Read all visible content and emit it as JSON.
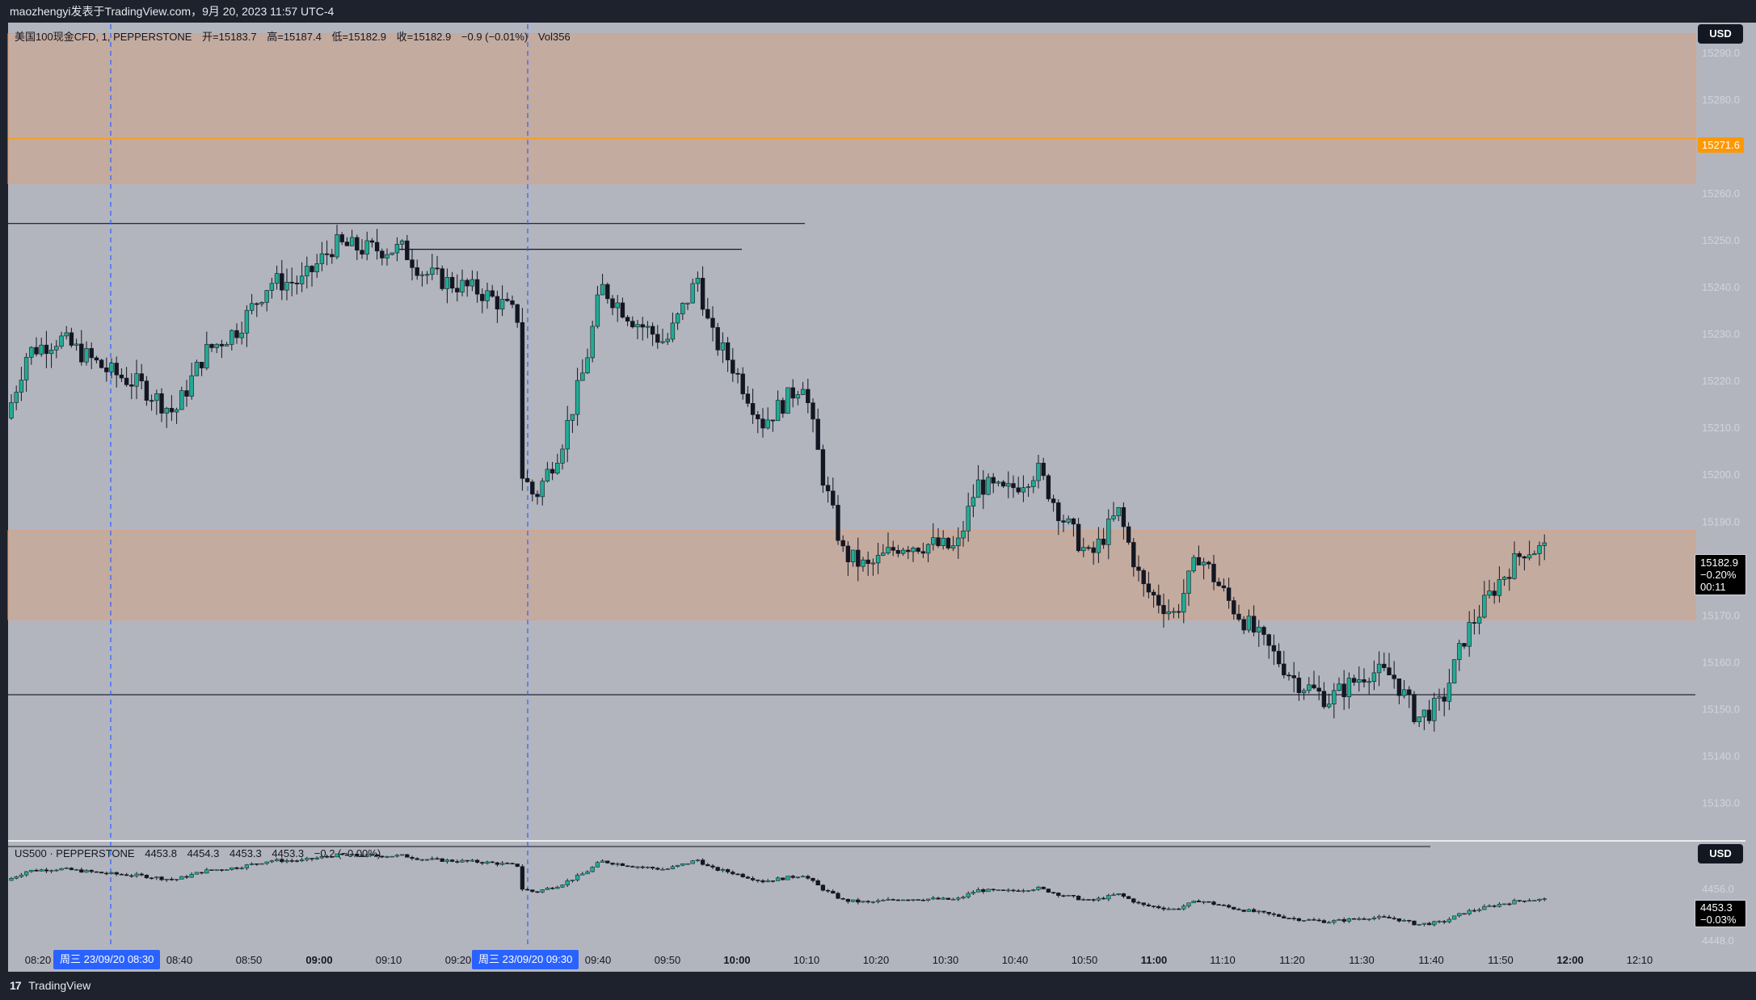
{
  "header": {
    "title": "maozhengyi发表于TradingView.com，9月 20, 2023 11:57 UTC-4"
  },
  "main_legend": {
    "symbol": "美国100现金CFD, 1, PEPPERSTONE",
    "open": "开=15183.7",
    "high": "高=15187.4",
    "low": "低=15182.9",
    "close": "收=15182.9",
    "change": "−0.9 (−0.01%)",
    "volume": "Vol356"
  },
  "sub_legend": {
    "symbol": "US500 · PEPPERSTONE",
    "open": "4453.8",
    "high": "4454.3",
    "low": "4453.3",
    "close": "4453.3",
    "change": "−0.2 (−0.00%)"
  },
  "price_axis": {
    "currency": "USD",
    "labels": [
      "15290.0",
      "15280.0",
      "15270.0",
      "15260.0",
      "15250.0",
      "15240.0",
      "15230.0",
      "15220.0",
      "15210.0",
      "15200.0",
      "15190.0",
      "15180.0",
      "15170.0",
      "15160.0",
      "15150.0",
      "15140.0",
      "15130.0"
    ],
    "orange_level": "15271.6",
    "last_price": "15182.9",
    "last_change": "−0.20%",
    "countdown": "00:11"
  },
  "sub_axis": {
    "currency": "USD",
    "labels": [
      "4456.0",
      "4448.0"
    ],
    "last_price": "4453.3",
    "last_change": "−0.03%"
  },
  "time_axis": {
    "labels": [
      "08:20",
      "08:40",
      "08:50",
      "09:00",
      "09:10",
      "09:20",
      "09:40",
      "09:50",
      "10:00",
      "10:10",
      "10:20",
      "10:30",
      "10:40",
      "10:50",
      "11:00",
      "11:10",
      "11:20",
      "11:30",
      "11:40",
      "11:50",
      "12:00",
      "12:10"
    ],
    "bold": [
      "09:00",
      "10:00",
      "11:00",
      "12:00"
    ],
    "session_tags": [
      "周三 23/09/20   08:30",
      "周三 23/09/20   09:30"
    ]
  },
  "footer": {
    "logo": "17",
    "brand": "TradingView"
  },
  "colors": {
    "background": "#b2b5be",
    "zone_fill": "#d9a07a",
    "up_candle": "#22ab94",
    "down_candle": "#131722",
    "orange_line": "#ff9800",
    "session_line": "#2962ff"
  },
  "chart_data": {
    "type": "candlestick",
    "series": [
      {
        "name": "美国100现金CFD",
        "y_unit": "USD",
        "ylim": [
          15122,
          15296
        ]
      },
      {
        "name": "US500",
        "y_unit": "USD"
      }
    ],
    "zones": [
      [
        15262,
        15294
      ],
      [
        15169,
        15188
      ]
    ],
    "horizontal_lines": [
      15253.5,
      15248,
      15153
    ],
    "session_breaks": [
      "08:30",
      "09:30"
    ]
  }
}
